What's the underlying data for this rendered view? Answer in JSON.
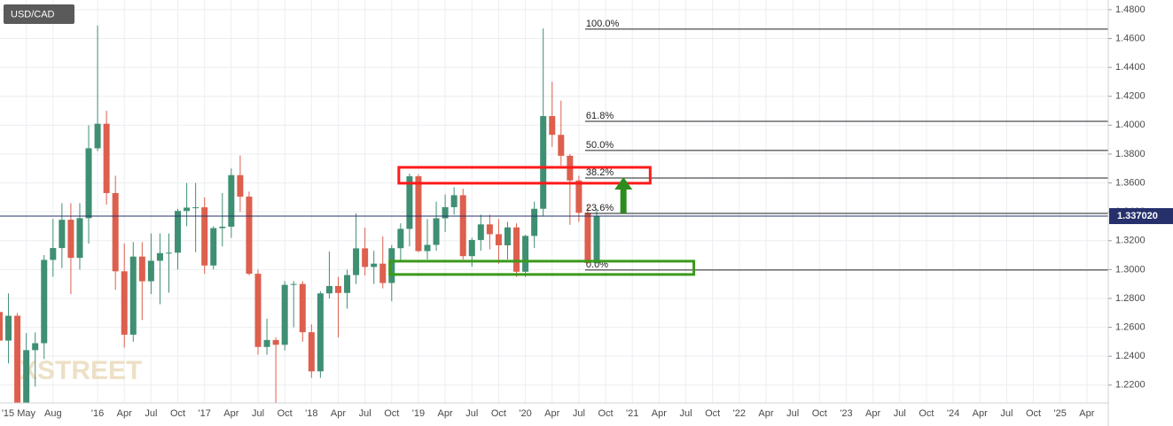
{
  "chart_data": {
    "type": "candlestick",
    "title": "USD/CAD",
    "watermark": "XSTREET",
    "up_color": "#3f8f73",
    "down_color": "#dd5f4d",
    "grid": true,
    "x": [
      1,
      2,
      3,
      4,
      5,
      6,
      7,
      8,
      9,
      10,
      11,
      12,
      13,
      14,
      15,
      16,
      17,
      18,
      19,
      20,
      21,
      22,
      23,
      24,
      25,
      26,
      27,
      28,
      29,
      30,
      31,
      32,
      33,
      34,
      35,
      36,
      37,
      38,
      39,
      40,
      41,
      42,
      43,
      44,
      45,
      46,
      47,
      48,
      49,
      50,
      51,
      52,
      53,
      54,
      55,
      56,
      57,
      58,
      59,
      60,
      61,
      62,
      63,
      64,
      65,
      66,
      67,
      68
    ],
    "open": [
      1.2706,
      1.2508,
      1.268,
      1.2066,
      1.2442,
      1.249,
      1.3067,
      1.3149,
      1.3345,
      1.3081,
      1.3356,
      1.384,
      1.401,
      1.353,
      1.2988,
      1.2549,
      1.309,
      1.2919,
      1.3061,
      1.3114,
      1.3117,
      1.3406,
      1.3429,
      1.3431,
      1.3028,
      1.3287,
      1.3297,
      1.3654,
      1.3505,
      1.2971,
      1.2464,
      1.2512,
      1.2479,
      1.2894,
      1.29,
      1.2566,
      1.2295,
      1.2835,
      1.2886,
      1.2838,
      1.2962,
      1.3147,
      1.3018,
      1.3041,
      1.2907,
      1.3148,
      1.3282,
      1.3646,
      1.3128,
      1.3171,
      1.3355,
      1.3432,
      1.3515,
      1.3093,
      1.3205,
      1.3313,
      1.3245,
      1.3168,
      1.3292,
      1.2985,
      1.3233,
      1.3421,
      1.4063,
      1.3933,
      1.3788,
      1.3617,
      1.3393,
      1.3045
    ],
    "high": [
      1.28,
      1.2835,
      1.27,
      1.256,
      1.2565,
      1.31,
      1.335,
      1.346,
      1.346,
      1.346,
      1.4,
      1.469,
      1.41,
      1.365,
      1.318,
      1.319,
      1.319,
      1.325,
      1.325,
      1.325,
      1.342,
      1.36,
      1.36,
      1.35,
      1.33,
      1.353,
      1.37,
      1.379,
      1.354,
      1.3,
      1.266,
      1.253,
      1.292,
      1.292,
      1.292,
      1.262,
      1.285,
      1.3125,
      1.295,
      1.3,
      1.339,
      1.329,
      1.313,
      1.323,
      1.317,
      1.332,
      1.3665,
      1.366,
      1.335,
      1.347,
      1.352,
      1.357,
      1.356,
      1.322,
      1.338,
      1.338,
      1.335,
      1.333,
      1.332,
      1.324,
      1.347,
      1.467,
      1.43,
      1.417,
      1.38,
      1.365,
      1.345,
      1.342
    ],
    "low": [
      1.235,
      1.235,
      1.194,
      1.2,
      1.219,
      1.238,
      1.295,
      1.301,
      1.283,
      1.3,
      1.318,
      1.382,
      1.345,
      1.286,
      1.246,
      1.25,
      1.265,
      1.283,
      1.276,
      1.284,
      1.3,
      1.33,
      1.312,
      1.297,
      1.3,
      1.316,
      1.322,
      1.34,
      1.296,
      1.241,
      1.241,
      1.206,
      1.244,
      1.26,
      1.25,
      1.225,
      1.225,
      1.28,
      1.253,
      1.273,
      1.29,
      1.296,
      1.29,
      1.287,
      1.278,
      1.305,
      1.316,
      1.312,
      1.307,
      1.313,
      1.326,
      1.338,
      1.307,
      1.302,
      1.313,
      1.314,
      1.304,
      1.307,
      1.295,
      1.295,
      1.315,
      1.337,
      1.385,
      1.372,
      1.331,
      1.333,
      1.304,
      1.304
    ],
    "close": [
      1.2508,
      1.268,
      1.2066,
      1.2442,
      1.249,
      1.3067,
      1.3149,
      1.3345,
      1.3081,
      1.3356,
      1.384,
      1.401,
      1.353,
      1.2988,
      1.2549,
      1.309,
      1.2919,
      1.3061,
      1.3114,
      1.3117,
      1.3406,
      1.3429,
      1.3431,
      1.3028,
      1.3287,
      1.3297,
      1.3654,
      1.3505,
      1.2971,
      1.2464,
      1.2512,
      1.2479,
      1.2894,
      1.29,
      1.2566,
      1.2295,
      1.2835,
      1.2886,
      1.2838,
      1.2962,
      1.3147,
      1.3018,
      1.3041,
      1.2907,
      1.3148,
      1.3282,
      1.3646,
      1.3128,
      1.3171,
      1.3355,
      1.3432,
      1.3515,
      1.3093,
      1.3205,
      1.3313,
      1.3245,
      1.3168,
      1.3292,
      1.2985,
      1.3233,
      1.3421,
      1.4063,
      1.3933,
      1.3788,
      1.3617,
      1.3393,
      1.3045,
      1.337
    ],
    "xlim": [
      1.05,
      125.4
    ],
    "ylim": [
      1.2076,
      1.4867
    ],
    "xticks": [
      {
        "value": 0,
        "label": "'15"
      },
      {
        "value": 4,
        "label": "May"
      },
      {
        "value": 7,
        "label": "Aug"
      },
      {
        "value": 12,
        "label": "'16"
      },
      {
        "value": 15,
        "label": "Apr"
      },
      {
        "value": 18,
        "label": "Jul"
      },
      {
        "value": 21,
        "label": "Oct"
      },
      {
        "value": 24,
        "label": "'17"
      },
      {
        "value": 27,
        "label": "Apr"
      },
      {
        "value": 30,
        "label": "Jul"
      },
      {
        "value": 33,
        "label": "Oct"
      },
      {
        "value": 36,
        "label": "'18"
      },
      {
        "value": 39,
        "label": "Apr"
      },
      {
        "value": 42,
        "label": "Jul"
      },
      {
        "value": 45,
        "label": "Oct"
      },
      {
        "value": 48,
        "label": "'19"
      },
      {
        "value": 51,
        "label": "Apr"
      },
      {
        "value": 54,
        "label": "Jul"
      },
      {
        "value": 57,
        "label": "Oct"
      },
      {
        "value": 60,
        "label": "'20"
      },
      {
        "value": 63,
        "label": "Apr"
      },
      {
        "value": 66,
        "label": "Jul"
      },
      {
        "value": 69,
        "label": "Oct"
      },
      {
        "value": 72,
        "label": "'21"
      },
      {
        "value": 75,
        "label": "Apr"
      },
      {
        "value": 78,
        "label": "Jul"
      },
      {
        "value": 81,
        "label": "Oct"
      },
      {
        "value": 84,
        "label": "'22"
      },
      {
        "value": 87,
        "label": "Apr"
      },
      {
        "value": 90,
        "label": "Jul"
      },
      {
        "value": 93,
        "label": "Oct"
      },
      {
        "value": 96,
        "label": "'23"
      },
      {
        "value": 99,
        "label": "Apr"
      },
      {
        "value": 102,
        "label": "Jul"
      },
      {
        "value": 105,
        "label": "Oct"
      },
      {
        "value": 108,
        "label": "'24"
      },
      {
        "value": 111,
        "label": "Apr"
      },
      {
        "value": 114,
        "label": "Jul"
      },
      {
        "value": 117,
        "label": "Oct"
      },
      {
        "value": 120,
        "label": "'25"
      },
      {
        "value": 123,
        "label": "Apr"
      }
    ],
    "yticks": [
      {
        "value": 1.22,
        "label": "1.2200"
      },
      {
        "value": 1.24,
        "label": "1.2400"
      },
      {
        "value": 1.26,
        "label": "1.2600"
      },
      {
        "value": 1.28,
        "label": "1.2800"
      },
      {
        "value": 1.3,
        "label": "1.3000"
      },
      {
        "value": 1.32,
        "label": "1.3200"
      },
      {
        "value": 1.34,
        "label": "1.3400"
      },
      {
        "value": 1.36,
        "label": "1.3600"
      },
      {
        "value": 1.38,
        "label": "1.3800"
      },
      {
        "value": 1.4,
        "label": "1.4000"
      },
      {
        "value": 1.42,
        "label": "1.4200"
      },
      {
        "value": 1.44,
        "label": "1.4400"
      },
      {
        "value": 1.46,
        "label": "1.4600"
      },
      {
        "value": 1.48,
        "label": "1.4800"
      }
    ],
    "last_price": {
      "value": 1.33702,
      "label": "1.337020",
      "color": "#26306b"
    },
    "fib_levels": [
      {
        "label": "100.0%",
        "value": 1.4665
      },
      {
        "label": "61.8%",
        "value": 1.4027
      },
      {
        "label": "50.0%",
        "value": 1.3825
      },
      {
        "label": "38.2%",
        "value": 1.3634
      },
      {
        "label": "23.6%",
        "value": 1.3389
      },
      {
        "label": "0.0%",
        "value": 1.2997
      }
    ],
    "fib_start": 66.7,
    "zones": [
      {
        "color": "#ff1a1a",
        "x": [
          45.8,
          74.0
        ],
        "y": [
          1.3598,
          1.3708
        ]
      },
      {
        "color": "#3a9a1a",
        "x": [
          44.8,
          78.9
        ],
        "y": [
          1.2966,
          1.3058
        ]
      }
    ],
    "arrow": {
      "color": "#2e8b1e",
      "x": 71.0,
      "y": [
        1.3389,
        1.364
      ]
    }
  }
}
